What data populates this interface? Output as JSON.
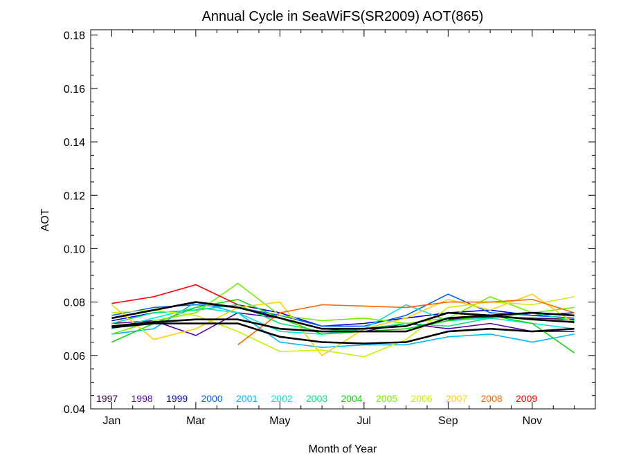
{
  "chart_data": {
    "type": "line",
    "title": "Annual Cycle in SeaWiFS(SR2009) AOT(865)",
    "xlabel": "Month of Year",
    "ylabel": "AOT",
    "xlim": [
      0.5,
      12.5
    ],
    "ylim": [
      0.04,
      0.182
    ],
    "x_ticks": [
      {
        "x": 1,
        "label": "Jan"
      },
      {
        "x": 3,
        "label": "Mar"
      },
      {
        "x": 5,
        "label": "May"
      },
      {
        "x": 7,
        "label": "Jul"
      },
      {
        "x": 9,
        "label": "Sep"
      },
      {
        "x": 11,
        "label": "Nov"
      }
    ],
    "y_ticks": [
      {
        "y": 0.04,
        "label": "0.04"
      },
      {
        "y": 0.06,
        "label": "0.06"
      },
      {
        "y": 0.08,
        "label": "0.08"
      },
      {
        "y": 0.1,
        "label": "0.10"
      },
      {
        "y": 0.12,
        "label": "0.12"
      },
      {
        "y": 0.14,
        "label": "0.14"
      },
      {
        "y": 0.16,
        "label": "0.16"
      },
      {
        "y": 0.18,
        "label": "0.18"
      }
    ],
    "legend_position": "bottom-left",
    "x": [
      1,
      2,
      3,
      4,
      5,
      6,
      7,
      8,
      9,
      10,
      11,
      12
    ],
    "series": [
      {
        "name": "1997",
        "color": "#3a0055",
        "values": [
          null,
          null,
          null,
          null,
          null,
          null,
          null,
          null,
          0.0735,
          0.0745,
          0.074,
          0.0735
        ]
      },
      {
        "name": "1998",
        "color": "#5a00a8",
        "values": [
          0.072,
          0.073,
          0.0675,
          0.076,
          0.074,
          0.07,
          0.069,
          0.072,
          0.07,
          0.072,
          0.069,
          0.069
        ]
      },
      {
        "name": "1999",
        "color": "#0000e0",
        "values": [
          0.073,
          0.076,
          0.077,
          0.079,
          0.076,
          0.071,
          0.072,
          0.074,
          0.076,
          0.077,
          0.075,
          0.076
        ]
      },
      {
        "name": "2000",
        "color": "#0060ff",
        "values": [
          0.075,
          0.078,
          0.079,
          0.078,
          0.075,
          0.071,
          0.071,
          0.075,
          0.083,
          0.076,
          0.075,
          0.074
        ]
      },
      {
        "name": "2001",
        "color": "#00b8ff",
        "values": [
          0.068,
          0.07,
          0.08,
          0.076,
          0.065,
          0.063,
          0.064,
          0.064,
          0.067,
          0.068,
          0.065,
          0.068
        ]
      },
      {
        "name": "2002",
        "color": "#00e8d8",
        "values": [
          0.07,
          0.074,
          0.078,
          0.076,
          0.069,
          0.068,
          0.07,
          0.079,
          0.073,
          0.074,
          0.072,
          0.07
        ]
      },
      {
        "name": "2003",
        "color": "#00e878",
        "values": [
          0.072,
          0.076,
          0.077,
          0.079,
          0.072,
          0.069,
          0.07,
          0.072,
          0.071,
          0.074,
          0.076,
          0.073
        ]
      },
      {
        "name": "2004",
        "color": "#10d810",
        "values": [
          0.065,
          0.072,
          0.078,
          0.081,
          0.074,
          0.068,
          0.069,
          0.07,
          0.073,
          0.075,
          0.072,
          0.061
        ]
      },
      {
        "name": "2005",
        "color": "#70f000",
        "values": [
          0.068,
          0.073,
          0.076,
          0.087,
          0.075,
          0.073,
          0.074,
          0.072,
          0.074,
          0.082,
          0.076,
          0.078
        ]
      },
      {
        "name": "2006",
        "color": "#c8f000",
        "values": [
          0.076,
          0.077,
          0.075,
          0.069,
          0.0615,
          0.062,
          0.0595,
          0.066,
          0.078,
          0.08,
          0.079,
          0.082
        ]
      },
      {
        "name": "2007",
        "color": "#ffd000",
        "values": [
          0.079,
          0.066,
          0.07,
          0.078,
          0.08,
          0.06,
          0.07,
          0.074,
          0.081,
          0.077,
          0.083,
          0.072
        ]
      },
      {
        "name": "2008",
        "color": "#ff6400",
        "values": [
          null,
          null,
          null,
          0.064,
          0.076,
          0.079,
          0.0785,
          0.078,
          0.08,
          0.08,
          0.081,
          0.076
        ]
      },
      {
        "name": "2009",
        "color": "#ff0000",
        "values": [
          0.0795,
          0.082,
          0.0865,
          0.079,
          null,
          null,
          null,
          null,
          null,
          null,
          null,
          null
        ]
      }
    ],
    "mean_series": [
      {
        "color": "#000000",
        "values": [
          0.074,
          0.077,
          0.08,
          0.078,
          0.074,
          0.07,
          0.07,
          0.071,
          0.076,
          0.075,
          0.076,
          0.075
        ]
      },
      {
        "color": "#000000",
        "values": [
          0.071,
          0.0725,
          0.0735,
          0.0735,
          0.07,
          0.069,
          0.069,
          0.069,
          0.074,
          0.075,
          0.0735,
          0.0725
        ]
      },
      {
        "color": "#000000",
        "values": [
          0.0705,
          0.072,
          0.072,
          0.072,
          0.067,
          0.065,
          0.0645,
          0.065,
          0.069,
          0.07,
          0.069,
          0.07
        ]
      }
    ]
  }
}
